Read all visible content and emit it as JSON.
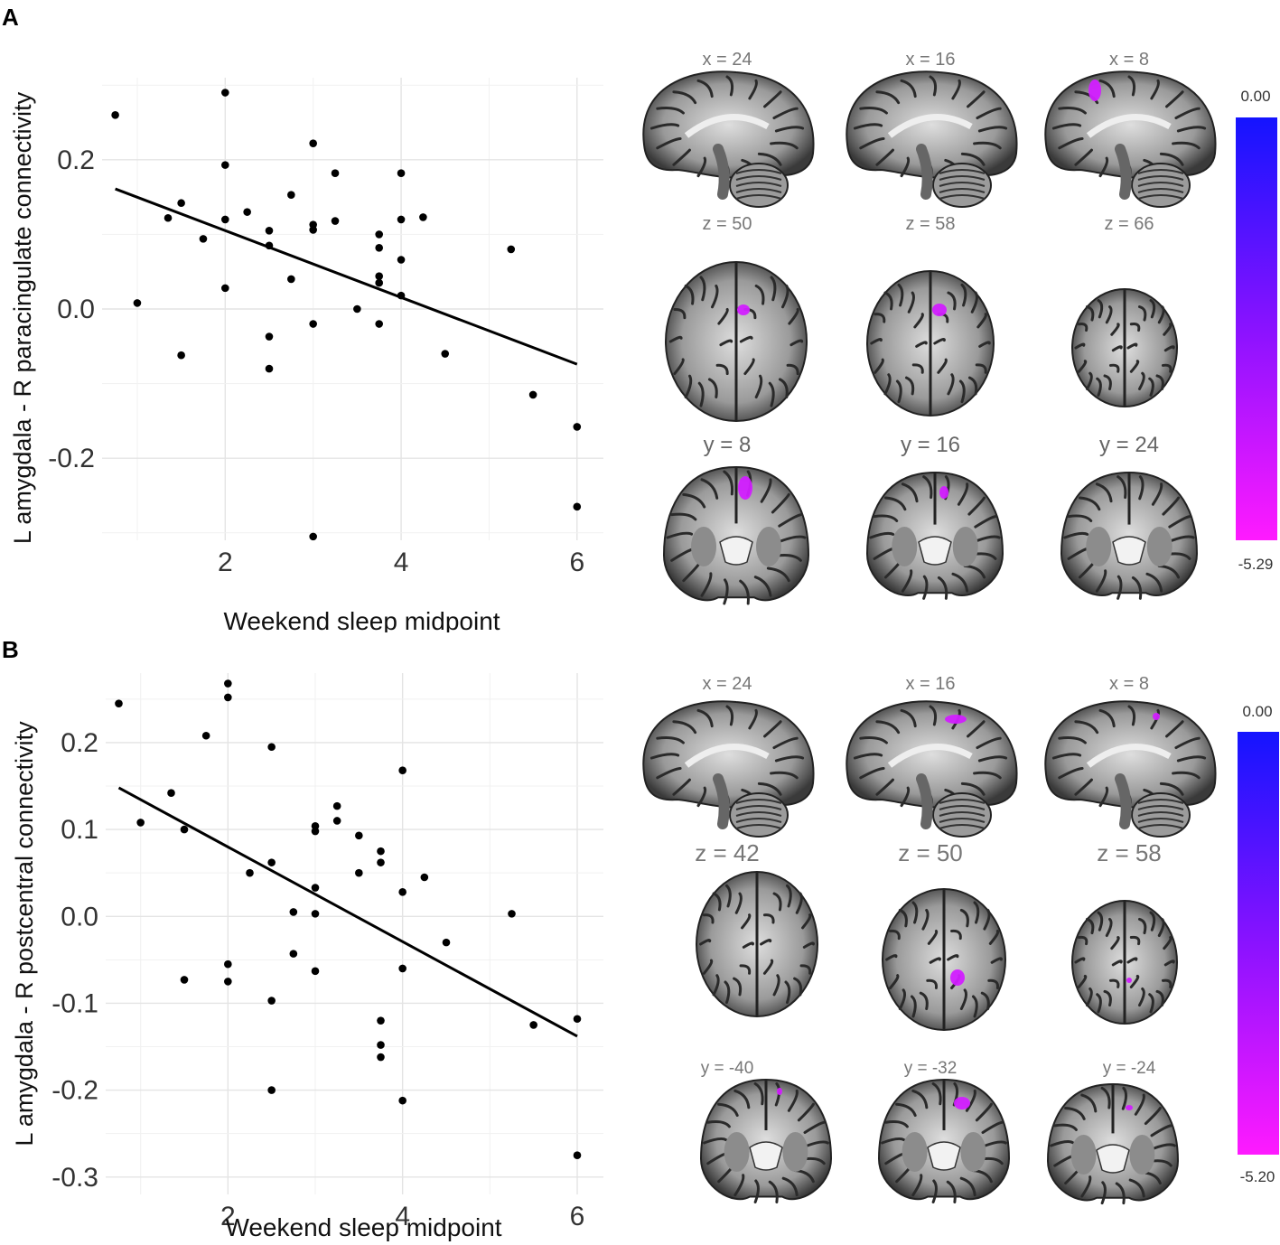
{
  "panels": [
    {
      "letter": "A",
      "colorbar": {
        "max_label": "0.00",
        "min_label": "-5.29",
        "top_color": "#1414ff",
        "bottom_color": "#ff1aff"
      },
      "slice_rows": [
        {
          "view": "sagittal",
          "labels": [
            "x = 24",
            "x = 16",
            "x = 8"
          ]
        },
        {
          "view": "axial",
          "labels": [
            "z = 50",
            "z = 58",
            "z = 66"
          ]
        },
        {
          "view": "coronal",
          "labels": [
            "y = 8",
            "y = 16",
            "y = 24"
          ]
        }
      ]
    },
    {
      "letter": "B",
      "colorbar": {
        "max_label": "0.00",
        "min_label": "-5.20",
        "top_color": "#1414ff",
        "bottom_color": "#ff1aff"
      },
      "slice_rows": [
        {
          "view": "sagittal",
          "labels": [
            "x = 24",
            "x = 16",
            "x = 8"
          ]
        },
        {
          "view": "axial",
          "labels": [
            "z = 42",
            "z = 50",
            "z = 58"
          ]
        },
        {
          "view": "coronal",
          "labels": [
            "y = -40",
            "y = -32",
            "y = -24"
          ]
        }
      ]
    }
  ],
  "chart_data": [
    {
      "type": "scatter",
      "xlabel": "Weekend sleep midpoint",
      "ylabel": "L amygdala - R paracingulate connectivity",
      "xlim": [
        0.6,
        6.3
      ],
      "ylim": [
        -0.31,
        0.31
      ],
      "xticks": [
        2,
        4,
        6
      ],
      "xtick_labels": [
        "2",
        "4",
        "6"
      ],
      "yticks": [
        -0.2,
        0.0,
        0.2
      ],
      "ytick_labels": [
        "-0.2",
        "0.0",
        "0.2"
      ],
      "grid": true,
      "fit_line": {
        "x": [
          0.75,
          6.0
        ],
        "y": [
          0.161,
          -0.074
        ]
      },
      "points": [
        [
          0.75,
          0.26
        ],
        [
          1.0,
          0.008
        ],
        [
          1.35,
          0.122
        ],
        [
          1.5,
          0.142
        ],
        [
          1.5,
          -0.062
        ],
        [
          1.75,
          0.094
        ],
        [
          2.0,
          0.29
        ],
        [
          2.0,
          0.193
        ],
        [
          2.0,
          0.12
        ],
        [
          2.0,
          0.028
        ],
        [
          2.25,
          0.13
        ],
        [
          2.5,
          0.105
        ],
        [
          2.5,
          0.085
        ],
        [
          2.5,
          -0.037
        ],
        [
          2.5,
          -0.08
        ],
        [
          2.75,
          0.153
        ],
        [
          2.75,
          0.04
        ],
        [
          3.0,
          0.222
        ],
        [
          3.0,
          0.113
        ],
        [
          3.0,
          0.106
        ],
        [
          3.0,
          -0.02
        ],
        [
          3.0,
          -0.305
        ],
        [
          3.25,
          0.182
        ],
        [
          3.25,
          0.118
        ],
        [
          3.5,
          0.0
        ],
        [
          3.75,
          0.1
        ],
        [
          3.75,
          0.082
        ],
        [
          3.75,
          0.044
        ],
        [
          3.75,
          0.035
        ],
        [
          3.75,
          -0.02
        ],
        [
          4.0,
          0.182
        ],
        [
          4.0,
          0.12
        ],
        [
          4.0,
          0.066
        ],
        [
          4.0,
          0.018
        ],
        [
          4.25,
          0.123
        ],
        [
          4.5,
          -0.06
        ],
        [
          5.25,
          0.08
        ],
        [
          5.5,
          -0.115
        ],
        [
          6.0,
          -0.158
        ],
        [
          6.0,
          -0.265
        ]
      ]
    },
    {
      "type": "scatter",
      "xlabel": "Weekend sleep midpoint",
      "ylabel": "L amygdala - R postcentral connectivity",
      "xlim": [
        0.6,
        6.3
      ],
      "ylim": [
        -0.32,
        0.28
      ],
      "xticks": [
        2,
        4,
        6
      ],
      "xtick_labels": [
        "2",
        "4",
        "6"
      ],
      "yticks": [
        -0.3,
        -0.2,
        -0.1,
        0.0,
        0.1,
        0.2
      ],
      "ytick_labels": [
        "-0.3",
        "-0.2",
        "-0.1",
        "0.0",
        "0.1",
        "0.2"
      ],
      "grid": true,
      "fit_line": {
        "x": [
          0.75,
          6.0
        ],
        "y": [
          0.148,
          -0.138
        ]
      },
      "points": [
        [
          0.75,
          0.245
        ],
        [
          1.0,
          0.108
        ],
        [
          1.35,
          0.142
        ],
        [
          1.5,
          0.1
        ],
        [
          1.5,
          -0.073
        ],
        [
          1.75,
          0.208
        ],
        [
          2.0,
          0.268
        ],
        [
          2.0,
          0.252
        ],
        [
          2.0,
          -0.055
        ],
        [
          2.0,
          -0.075
        ],
        [
          2.25,
          0.05
        ],
        [
          2.5,
          0.195
        ],
        [
          2.5,
          0.062
        ],
        [
          2.5,
          -0.097
        ],
        [
          2.5,
          -0.2
        ],
        [
          2.75,
          0.005
        ],
        [
          2.75,
          -0.043
        ],
        [
          3.0,
          0.104
        ],
        [
          3.0,
          0.098
        ],
        [
          3.0,
          0.033
        ],
        [
          3.0,
          0.003
        ],
        [
          3.0,
          -0.063
        ],
        [
          3.25,
          0.127
        ],
        [
          3.25,
          0.11
        ],
        [
          3.5,
          0.093
        ],
        [
          3.5,
          0.05
        ],
        [
          3.75,
          0.075
        ],
        [
          3.75,
          0.062
        ],
        [
          3.75,
          -0.12
        ],
        [
          3.75,
          -0.148
        ],
        [
          3.75,
          -0.162
        ],
        [
          4.0,
          0.168
        ],
        [
          4.0,
          0.028
        ],
        [
          4.0,
          -0.06
        ],
        [
          4.0,
          -0.212
        ],
        [
          4.25,
          0.045
        ],
        [
          4.5,
          -0.03
        ],
        [
          5.25,
          0.003
        ],
        [
          5.5,
          -0.125
        ],
        [
          6.0,
          -0.118
        ],
        [
          6.0,
          -0.275
        ]
      ]
    }
  ]
}
